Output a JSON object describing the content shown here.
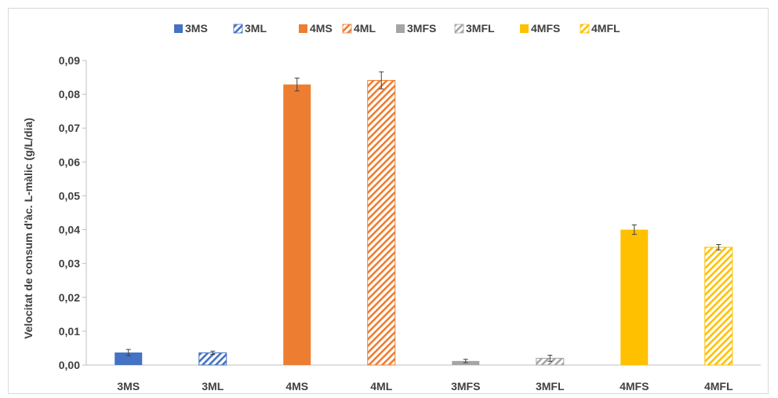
{
  "chart_data": {
    "type": "bar",
    "title": "",
    "xlabel": "",
    "ylabel": "Velocitat de consum d'àc. L-màlic (g/L/dia)",
    "ylim": [
      0,
      0.09
    ],
    "yticks": [
      "0,00",
      "0,01",
      "0,02",
      "0,03",
      "0,04",
      "0,05",
      "0,06",
      "0,07",
      "0,08",
      "0,09"
    ],
    "grid": false,
    "legend_position": "top",
    "categories": [
      "3MS",
      "3ML",
      "4MS",
      "4ML",
      "3MFS",
      "3MFL",
      "4MFS",
      "4MFL"
    ],
    "values": [
      0.0037,
      0.0036,
      0.0829,
      0.0841,
      0.0012,
      0.002,
      0.04,
      0.0348
    ],
    "errors": [
      0.0009,
      0.0005,
      0.0019,
      0.0025,
      0.0005,
      0.0009,
      0.0014,
      0.0008
    ],
    "colors": [
      "#4472c4",
      "#4472c4",
      "#ed7d31",
      "#ed7d31",
      "#a5a5a5",
      "#a5a5a5",
      "#ffc000",
      "#ffc000"
    ],
    "patterns": [
      "solid",
      "hatched",
      "solid",
      "hatched",
      "solid",
      "hatched",
      "solid",
      "hatched"
    ],
    "legend": [
      "3MS",
      "3ML",
      "4MS",
      "4ML",
      "3MFS",
      "3MFL",
      "4MFS",
      "4MFL"
    ]
  }
}
